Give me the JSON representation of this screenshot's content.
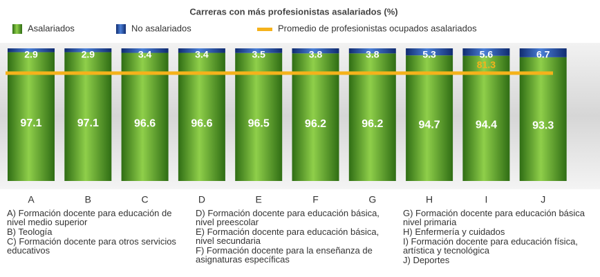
{
  "chart_data": {
    "type": "stacked_bar",
    "title": "Carreras con más profesionistas asalariados (%)",
    "categories": [
      "A",
      "B",
      "C",
      "D",
      "E",
      "F",
      "G",
      "H",
      "I",
      "J"
    ],
    "series": [
      {
        "name": "Asalariados",
        "color": "#5a9e2c",
        "values": [
          97.1,
          97.1,
          96.6,
          96.6,
          96.5,
          96.2,
          96.2,
          94.7,
          94.4,
          93.3
        ]
      },
      {
        "name": "No asalariados",
        "color": "#1f4ea3",
        "values": [
          2.9,
          2.9,
          3.4,
          3.4,
          3.5,
          3.8,
          3.8,
          5.3,
          5.6,
          6.7
        ]
      }
    ],
    "average": {
      "name": "Promedio de profesionistas ocupados asalariados",
      "value": 81.3,
      "color": "#f5b21b"
    },
    "ylim": [
      0,
      100
    ],
    "descriptions": [
      "A) Formación docente para educación de nivel medio superior",
      "B) Teología",
      "C) Formación docente para otros servicios educativos",
      "D) Formación docente para educación básica, nivel preescolar",
      "E) Formación docente para educación básica, nivel secundaria",
      "F) Formación docente para la enseñanza de asignaturas específicas",
      "G) Formación docente para educación básica nivel primaria",
      "H) Enfermería y cuidados",
      "I) Formación docente para educación física, artística y tecnológica",
      "J) Deportes"
    ]
  }
}
